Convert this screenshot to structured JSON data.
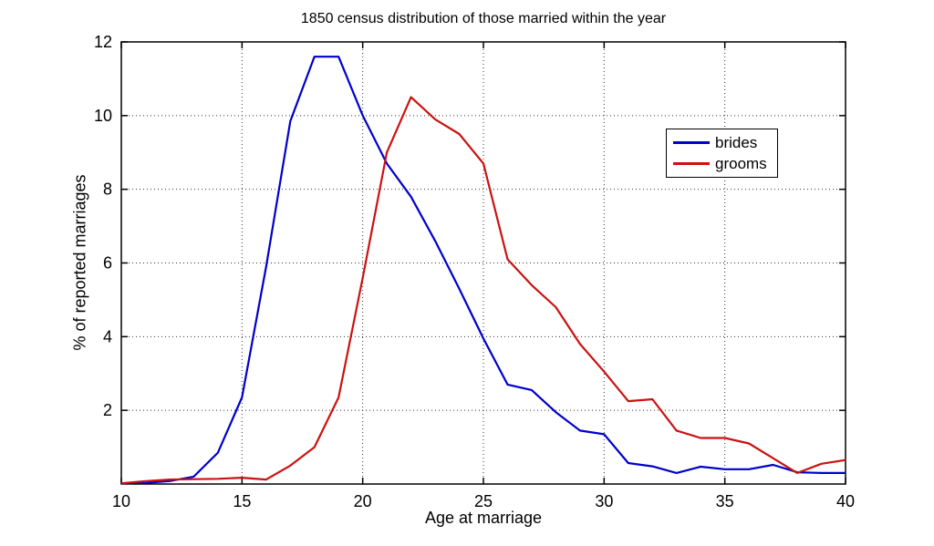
{
  "chart_data": {
    "type": "line",
    "title": "1850 census distribution of those married within the year",
    "xlabel": "Age at marriage",
    "ylabel": "% of reported marriages",
    "xlim": [
      10,
      40
    ],
    "ylim": [
      0,
      12
    ],
    "x_ticks": [
      10,
      15,
      20,
      25,
      30,
      35,
      40
    ],
    "y_ticks": [
      2,
      4,
      6,
      8,
      10,
      12
    ],
    "grid": true,
    "grid_style": "dotted",
    "legend_position": "upper-right-inside",
    "background": "#ffffff",
    "x": [
      10,
      11,
      12,
      13,
      14,
      15,
      16,
      17,
      18,
      19,
      20,
      21,
      22,
      23,
      24,
      25,
      26,
      27,
      28,
      29,
      30,
      31,
      32,
      33,
      34,
      35,
      36,
      37,
      38,
      39,
      40
    ],
    "series": [
      {
        "name": "brides",
        "color": "#0000cc",
        "values": [
          0.02,
          0.03,
          0.08,
          0.2,
          0.85,
          2.35,
          5.9,
          9.85,
          11.6,
          11.6,
          10.0,
          8.7,
          7.8,
          6.6,
          5.3,
          3.95,
          2.7,
          2.55,
          1.95,
          1.45,
          1.35,
          0.57,
          0.48,
          0.3,
          0.47,
          0.4,
          0.4,
          0.52,
          0.32,
          0.3,
          0.3
        ]
      },
      {
        "name": "grooms",
        "color": "#cc1111",
        "values": [
          0.02,
          0.08,
          0.12,
          0.13,
          0.14,
          0.17,
          0.12,
          0.5,
          1.0,
          2.35,
          5.6,
          9.0,
          10.5,
          9.9,
          9.5,
          8.7,
          6.1,
          5.4,
          4.8,
          3.8,
          3.05,
          2.25,
          2.3,
          1.45,
          1.25,
          1.25,
          1.1,
          0.7,
          0.3,
          0.55,
          0.65
        ]
      }
    ]
  }
}
